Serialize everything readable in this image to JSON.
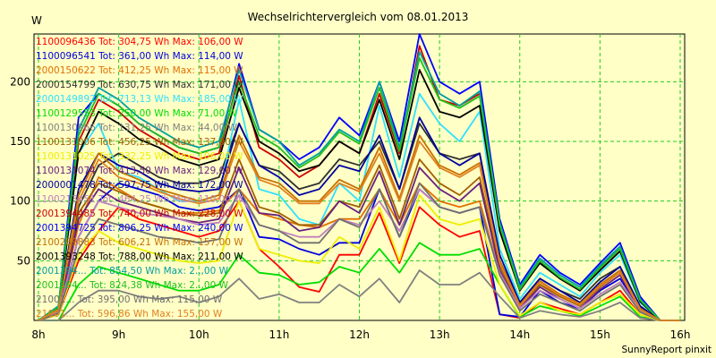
{
  "chart_data": {
    "type": "line",
    "title": "Wechselrichtervergleich vom 08.01.2013",
    "ylabel": "W",
    "xlabel": "",
    "footer": "SunnyReport pinxit",
    "x": [
      "8:00",
      "8:15",
      "8:30",
      "8:45",
      "9:00",
      "9:15",
      "9:30",
      "9:45",
      "10:00",
      "10:15",
      "10:30",
      "10:45",
      "11:00",
      "11:15",
      "11:30",
      "11:45",
      "12:00",
      "12:15",
      "12:30",
      "12:45",
      "13:00",
      "13:15",
      "13:30",
      "13:45",
      "14:00",
      "14:15",
      "14:30",
      "14:45",
      "15:00",
      "15:15",
      "15:30",
      "15:45",
      "16:00"
    ],
    "x_ticks": [
      "8h",
      "9h",
      "10h",
      "11h",
      "12h",
      "13h",
      "14h",
      "15h",
      "16h"
    ],
    "y_ticks": [
      50,
      100,
      150,
      200
    ],
    "ylim": [
      0,
      240
    ],
    "grid": true,
    "legend_position": "top-left",
    "series": [
      {
        "name": "1100096436 Tot: 304,75 Wh Max: 106,00 W",
        "color": "#ff0000",
        "values": [
          0,
          5,
          50,
          75,
          95,
          85,
          80,
          75,
          70,
          75,
          100,
          60,
          45,
          28,
          24,
          55,
          55,
          90,
          48,
          95,
          80,
          70,
          75,
          5,
          2,
          15,
          10,
          5,
          15,
          25,
          5,
          0,
          0
        ]
      },
      {
        "name": "1100096541 Tot: 361,00 Wh Max: 114,00 W",
        "color": "#0000e0",
        "values": [
          0,
          5,
          70,
          100,
          115,
          110,
          105,
          95,
          92,
          95,
          110,
          70,
          68,
          60,
          55,
          65,
          65,
          110,
          70,
          110,
          95,
          90,
          95,
          5,
          3,
          25,
          15,
          10,
          25,
          35,
          10,
          0,
          0
        ]
      },
      {
        "name": "2000150622 Tot: 412,25 Wh Max: 115,00 W",
        "color": "#e07000",
        "values": [
          0,
          8,
          80,
          120,
          110,
          100,
          95,
          90,
          90,
          92,
          110,
          90,
          85,
          80,
          78,
          85,
          85,
          110,
          80,
          115,
          100,
          95,
          100,
          40,
          10,
          30,
          20,
          12,
          30,
          40,
          10,
          0,
          0
        ]
      },
      {
        "name": "2000154799 Tot: 630,75 Wh Max: 171,00 W",
        "color": "#303030",
        "values": [
          0,
          10,
          95,
          130,
          140,
          130,
          120,
          115,
          115,
          120,
          165,
          130,
          125,
          110,
          115,
          135,
          130,
          150,
          110,
          165,
          140,
          135,
          140,
          50,
          15,
          35,
          25,
          18,
          35,
          45,
          12,
          0,
          0
        ]
      },
      {
        "name": "2000149892 Tot: 713,13 Wh Max: 185,00 W",
        "color": "#30e0ff",
        "values": [
          0,
          12,
          140,
          165,
          125,
          120,
          110,
          100,
          100,
          105,
          185,
          110,
          105,
          85,
          80,
          115,
          100,
          180,
          120,
          190,
          165,
          150,
          175,
          60,
          18,
          40,
          30,
          20,
          40,
          55,
          15,
          0,
          0
        ]
      },
      {
        "name": "1100129553 Tot: 250,00 Wh Max: 71,00 W",
        "color": "#00dd00",
        "values": [
          0,
          0,
          30,
          45,
          40,
          35,
          30,
          25,
          25,
          30,
          55,
          40,
          38,
          30,
          32,
          45,
          40,
          60,
          40,
          65,
          55,
          55,
          60,
          30,
          3,
          12,
          8,
          4,
          12,
          20,
          3,
          0,
          0
        ]
      },
      {
        "name": "1100130966 Tot: 131,25 Wh Max: 44,00 W",
        "color": "#808080",
        "values": [
          0,
          0,
          15,
          25,
          25,
          20,
          18,
          20,
          15,
          20,
          35,
          18,
          22,
          15,
          15,
          30,
          20,
          35,
          15,
          42,
          30,
          30,
          40,
          20,
          2,
          8,
          5,
          3,
          8,
          15,
          2,
          0,
          0
        ]
      },
      {
        "name": "1100131006 Tot: 456,25 Wh Max: 137,00 W",
        "color": "#a06000",
        "values": [
          0,
          8,
          90,
          115,
          108,
          100,
          95,
          90,
          88,
          90,
          135,
          95,
          90,
          80,
          80,
          100,
          95,
          130,
          85,
          135,
          115,
          105,
          120,
          45,
          12,
          30,
          20,
          12,
          28,
          40,
          10,
          0,
          0
        ]
      },
      {
        "name": "1100131025 Tot: 332,25 Wh Max: 106,00 W",
        "color": "#eeee00",
        "values": [
          0,
          5,
          55,
          75,
          65,
          60,
          55,
          50,
          48,
          50,
          100,
          60,
          55,
          50,
          48,
          70,
          60,
          95,
          50,
          105,
          85,
          80,
          85,
          30,
          4,
          15,
          8,
          5,
          15,
          22,
          5,
          0,
          0
        ]
      },
      {
        "name": "1100131074 Tot: 413,50 Wh Max: 129,00 W",
        "color": "#6a2080",
        "values": [
          0,
          6,
          85,
          110,
          100,
          95,
          90,
          85,
          82,
          85,
          128,
          90,
          88,
          75,
          78,
          100,
          90,
          125,
          80,
          128,
          110,
          100,
          115,
          42,
          10,
          28,
          18,
          10,
          26,
          38,
          8,
          0,
          0
        ]
      },
      {
        "name": "2000001478 Tot: 597,75 Wh Max: 172,00 W",
        "color": "#0000a0",
        "values": [
          0,
          10,
          110,
          140,
          130,
          125,
          115,
          110,
          108,
          110,
          165,
          130,
          120,
          105,
          110,
          130,
          125,
          155,
          110,
          170,
          140,
          130,
          140,
          55,
          15,
          35,
          25,
          15,
          32,
          45,
          12,
          0,
          0
        ]
      },
      {
        "name": "1100213451 Tot: 464,25 Wh Max: 110,00 W",
        "color": "#c080c0",
        "values": [
          0,
          7,
          70,
          100,
          95,
          90,
          88,
          85,
          80,
          82,
          105,
          80,
          75,
          70,
          70,
          85,
          80,
          100,
          75,
          110,
          95,
          90,
          95,
          40,
          10,
          25,
          18,
          10,
          22,
          32,
          8,
          0,
          0
        ]
      },
      {
        "name": "2001394485 Tot: 740,00 Wh Max: 228,00 W",
        "color": "#cc0000",
        "values": [
          0,
          10,
          150,
          185,
          175,
          160,
          150,
          140,
          135,
          140,
          205,
          145,
          135,
          120,
          130,
          150,
          140,
          190,
          140,
          230,
          185,
          180,
          190,
          80,
          28,
          50,
          35,
          25,
          45,
          60,
          18,
          0,
          0
        ]
      },
      {
        "name": "2001394725 Tot: 806,25 Wh Max: 240,00 W",
        "color": "#0000ff",
        "values": [
          0,
          12,
          170,
          190,
          180,
          165,
          155,
          145,
          140,
          145,
          215,
          160,
          150,
          135,
          145,
          170,
          155,
          200,
          150,
          240,
          200,
          190,
          200,
          85,
          30,
          55,
          40,
          30,
          48,
          65,
          20,
          0,
          0
        ]
      },
      {
        "name": "2100289883 Tot: 606,21 Wh Max: 157,00 W",
        "color": "#c87000",
        "values": [
          0,
          9,
          105,
          140,
          125,
          118,
          110,
          105,
          100,
          105,
          155,
          120,
          115,
          100,
          100,
          118,
          110,
          145,
          102,
          155,
          130,
          122,
          132,
          50,
          13,
          33,
          22,
          14,
          30,
          42,
          10,
          0,
          0
        ]
      },
      {
        "name": "2001393248 Tot: 788,00 Wh Max: 211,00 W",
        "color": "#000000",
        "values": [
          0,
          11,
          140,
          175,
          165,
          152,
          145,
          135,
          130,
          135,
          195,
          150,
          140,
          125,
          130,
          150,
          140,
          185,
          135,
          210,
          175,
          170,
          180,
          75,
          25,
          48,
          35,
          25,
          42,
          58,
          16,
          0,
          0
        ]
      },
      {
        "name": "2001394... Tot: 854,50 Wh Max: 2..,00 W",
        "color": "#00a0a0",
        "values": [
          0,
          12,
          160,
          195,
          185,
          170,
          160,
          150,
          145,
          150,
          210,
          160,
          150,
          130,
          140,
          160,
          150,
          200,
          145,
          225,
          190,
          180,
          192,
          82,
          28,
          52,
          38,
          28,
          46,
          62,
          18,
          0,
          0
        ]
      },
      {
        "name": "2001394... Tot: 824,38 Wh Max: 2..,00 W",
        "color": "#20c020",
        "values": [
          0,
          11,
          155,
          190,
          180,
          165,
          155,
          145,
          140,
          145,
          200,
          155,
          145,
          128,
          138,
          158,
          148,
          195,
          142,
          220,
          185,
          178,
          188,
          80,
          26,
          50,
          36,
          26,
          44,
          60,
          17,
          0,
          0
        ]
      },
      {
        "name": "21001... Tot: 395,00 Wh Max: 115,00 W",
        "color": "#707070",
        "values": [
          0,
          6,
          60,
          85,
          80,
          75,
          70,
          68,
          65,
          68,
          110,
          80,
          75,
          65,
          65,
          85,
          78,
          110,
          70,
          115,
          95,
          90,
          95,
          38,
          8,
          22,
          15,
          8,
          20,
          30,
          7,
          0,
          0
        ]
      },
      {
        "name": "21001... Tot: 596,86 Wh Max: 155,00 W",
        "color": "#e08020",
        "values": [
          0,
          9,
          100,
          135,
          120,
          115,
          108,
          102,
          98,
          102,
          150,
          118,
          112,
          98,
          98,
          115,
          108,
          140,
          100,
          150,
          128,
          120,
          130,
          48,
          12,
          32,
          21,
          13,
          29,
          40,
          9,
          0,
          0
        ]
      }
    ]
  }
}
